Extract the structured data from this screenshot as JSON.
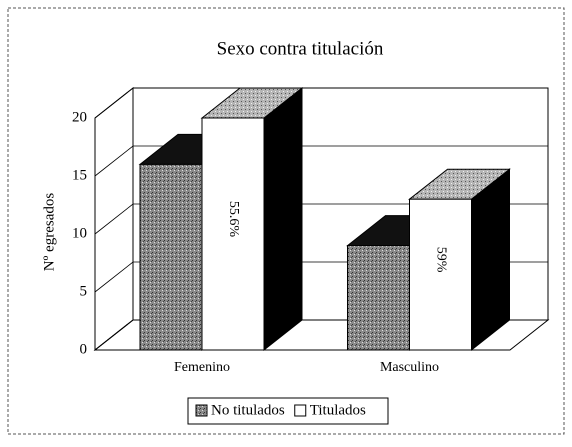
{
  "chart_data": {
    "type": "bar3d",
    "title": "Sexo contra titulación",
    "y_label": "Nº egresados",
    "categories": [
      "Femenino",
      "Masculino"
    ],
    "series": [
      {
        "name": "No titulados",
        "color": "#7a7a7a",
        "values": [
          16,
          9
        ]
      },
      {
        "name": "Titulados",
        "color": "#ffffff",
        "values": [
          20,
          13
        ]
      }
    ],
    "annotations": [
      "55.6%",
      "59%"
    ],
    "ylim": [
      0,
      20
    ],
    "yticks": [
      0,
      5,
      10,
      15,
      20
    ],
    "grid": true,
    "legend": "bottom"
  }
}
